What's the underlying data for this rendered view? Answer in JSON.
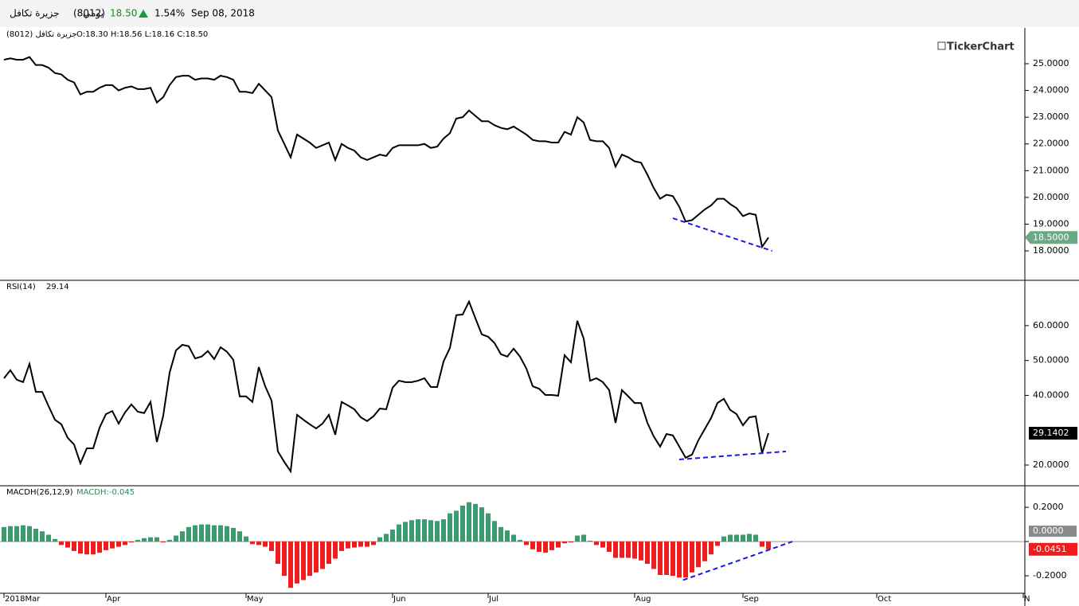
{
  "header": {
    "name": "جزيرة تكافل",
    "code": "(8012)",
    "period": "يومي",
    "price": "18.50",
    "change": "1.54%",
    "date": "Sep 08, 2018"
  },
  "watermark": "TickerChart",
  "chart_data": [
    {
      "type": "line",
      "label": "جزيرة تكافل (8012)",
      "ohlc": "O:18.30 H:18.56 L:18.16 C:18.50",
      "color": "#000000",
      "values": [
        25.15,
        25.2,
        25.15,
        25.15,
        25.25,
        24.95,
        24.95,
        24.85,
        24.65,
        24.6,
        24.4,
        24.3,
        23.85,
        23.95,
        23.95,
        24.1,
        24.2,
        24.2,
        24.0,
        24.1,
        24.15,
        24.05,
        24.05,
        24.1,
        23.55,
        23.75,
        24.2,
        24.5,
        24.55,
        24.55,
        24.4,
        24.45,
        24.45,
        24.4,
        24.55,
        24.5,
        24.4,
        23.95,
        23.95,
        23.9,
        24.25,
        24.0,
        23.75,
        22.5,
        22.0,
        21.5,
        22.35,
        22.2,
        22.05,
        21.85,
        21.95,
        22.05,
        21.4,
        22.0,
        21.85,
        21.75,
        21.5,
        21.4,
        21.5,
        21.6,
        21.55,
        21.85,
        21.95,
        21.95,
        21.95,
        21.95,
        22.0,
        21.85,
        21.9,
        22.2,
        22.4,
        22.95,
        23.0,
        23.25,
        23.05,
        22.85,
        22.85,
        22.7,
        22.6,
        22.55,
        22.65,
        22.5,
        22.35,
        22.15,
        22.1,
        22.1,
        22.05,
        22.05,
        22.45,
        22.35,
        23.0,
        22.8,
        22.15,
        22.1,
        22.1,
        21.85,
        21.15,
        21.6,
        21.5,
        21.35,
        21.3,
        20.85,
        20.35,
        19.95,
        20.1,
        20.05,
        19.65,
        19.1,
        19.15,
        19.35,
        19.55,
        19.7,
        19.95,
        19.95,
        19.75,
        19.6,
        19.3,
        19.4,
        19.35,
        18.15,
        18.5
      ],
      "ylim": [
        16.9,
        26.34
      ],
      "yticks": [
        {
          "value": 18,
          "label": "18.0000"
        },
        {
          "value": 19,
          "label": "19.0000"
        },
        {
          "value": 20,
          "label": "20.0000"
        },
        {
          "value": 21,
          "label": "21.0000"
        },
        {
          "value": 22,
          "label": "22.0000"
        },
        {
          "value": 23,
          "label": "23.0000"
        },
        {
          "value": 24,
          "label": "24.0000"
        },
        {
          "value": 25,
          "label": "25.0000"
        }
      ],
      "last": {
        "value": 18.5,
        "label": "18.5000"
      },
      "last_color": "#6aaa82",
      "trendline": {
        "x": [
          105,
          120.6
        ],
        "values": [
          19.22,
          18.0
        ],
        "color": "#1a1ae6"
      }
    },
    {
      "type": "line",
      "label": "RSI(14)",
      "current": 29.14,
      "color": "#000000",
      "values": [
        44.9,
        47.2,
        44.5,
        43.8,
        49.0,
        41.0,
        41.0,
        36.9,
        33.0,
        31.7,
        27.8,
        25.9,
        20.5,
        24.8,
        24.8,
        30.7,
        34.6,
        35.5,
        31.9,
        35.1,
        37.4,
        35.3,
        34.9,
        38.1,
        26.6,
        34.2,
        46.5,
        52.9,
        54.5,
        54.1,
        50.6,
        51.1,
        52.7,
        50.4,
        53.8,
        52.5,
        50.2,
        39.7,
        39.7,
        38.1,
        48.1,
        42.6,
        38.5,
        23.9,
        20.9,
        18.2,
        34.4,
        33.0,
        31.7,
        30.5,
        31.9,
        34.4,
        28.7,
        38.1,
        37.1,
        36.0,
        33.7,
        32.6,
        34.0,
        36.2,
        36.0,
        42.2,
        44.2,
        43.8,
        43.8,
        44.2,
        44.9,
        42.4,
        42.4,
        49.7,
        53.6,
        63.0,
        63.2,
        66.9,
        62.1,
        57.5,
        56.8,
        55.0,
        51.8,
        51.1,
        53.4,
        51.1,
        47.7,
        42.6,
        41.9,
        40.1,
        40.1,
        39.9,
        51.5,
        49.5,
        61.4,
        56.3,
        44.2,
        44.9,
        43.8,
        41.5,
        32.1,
        41.5,
        39.7,
        37.8,
        37.8,
        32.1,
        28.2,
        25.3,
        28.9,
        28.5,
        25.3,
        22.1,
        23.0,
        27.1,
        30.3,
        33.5,
        37.8,
        39.0,
        35.8,
        34.6,
        31.4,
        33.7,
        34.0,
        23.4,
        29.14
      ],
      "ylim": [
        14.06,
        73.0
      ],
      "yticks": [
        {
          "value": 20,
          "label": "20.0000"
        },
        {
          "value": 40,
          "label": "40.0000"
        },
        {
          "value": 50,
          "label": "50.0000"
        },
        {
          "value": 60,
          "label": "60.0000"
        }
      ],
      "last": 29.1402,
      "last_color": "#000000",
      "trendline": {
        "x": [
          106,
          122.75
        ],
        "values": [
          21.6,
          23.9
        ],
        "color": "#1a1ae6"
      }
    },
    {
      "type": "bar",
      "label": "MACDH(26,12,9)",
      "current_label": "MACDH:-0.045",
      "color_up": "#3a9b70",
      "color_down": "#ee1c1c",
      "values": [
        0.085,
        0.09,
        0.09,
        0.095,
        0.09,
        0.075,
        0.06,
        0.04,
        0.015,
        -0.02,
        -0.035,
        -0.055,
        -0.07,
        -0.075,
        -0.075,
        -0.065,
        -0.05,
        -0.04,
        -0.03,
        -0.02,
        -0.005,
        0.01,
        0.02,
        0.025,
        0.025,
        -0.005,
        0.01,
        0.035,
        0.06,
        0.085,
        0.095,
        0.1,
        0.1,
        0.095,
        0.095,
        0.09,
        0.08,
        0.06,
        0.03,
        -0.015,
        -0.02,
        -0.03,
        -0.055,
        -0.13,
        -0.2,
        -0.27,
        -0.245,
        -0.225,
        -0.2,
        -0.18,
        -0.16,
        -0.13,
        -0.1,
        -0.055,
        -0.04,
        -0.035,
        -0.03,
        -0.03,
        -0.02,
        0.025,
        0.045,
        0.07,
        0.1,
        0.115,
        0.125,
        0.13,
        0.13,
        0.125,
        0.12,
        0.13,
        0.165,
        0.18,
        0.21,
        0.23,
        0.22,
        0.2,
        0.165,
        0.12,
        0.085,
        0.065,
        0.04,
        0.01,
        -0.02,
        -0.045,
        -0.06,
        -0.065,
        -0.05,
        -0.035,
        -0.01,
        -0.005,
        0.035,
        0.04,
        0.005,
        -0.02,
        -0.035,
        -0.06,
        -0.095,
        -0.095,
        -0.095,
        -0.1,
        -0.11,
        -0.13,
        -0.16,
        -0.195,
        -0.195,
        -0.2,
        -0.21,
        -0.21,
        -0.18,
        -0.15,
        -0.115,
        -0.075,
        -0.025,
        0.03,
        0.04,
        0.04,
        0.04,
        0.045,
        0.04,
        -0.03,
        -0.0451
      ],
      "ylim": [
        -0.302,
        0.326
      ],
      "yticks": [
        {
          "value": -0.2,
          "label": "-0.2000"
        },
        {
          "value": 0,
          "label": "0.0000"
        },
        {
          "value": 0.2,
          "label": "0.2000"
        }
      ],
      "last": -0.0451,
      "trendline": {
        "x": [
          106.6,
          123.75
        ],
        "values": [
          -0.225,
          0
        ],
        "color": "#1a1ae6"
      },
      "xlim": [
        0,
        160
      ],
      "xticks": [
        {
          "value": 0,
          "label": "2018Mar"
        },
        {
          "value": 16,
          "label": "Apr"
        },
        {
          "value": 38,
          "label": "May"
        },
        {
          "value": 61,
          "label": "Jun"
        },
        {
          "value": 76,
          "label": "Jul"
        },
        {
          "value": 99,
          "label": "Aug"
        },
        {
          "value": 116,
          "label": "Sep"
        },
        {
          "value": 137,
          "label": "Oct"
        },
        {
          "value": 160,
          "label": "N"
        }
      ]
    }
  ]
}
